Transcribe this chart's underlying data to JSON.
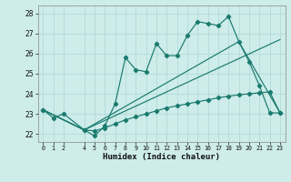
{
  "xlabel": "Humidex (Indice chaleur)",
  "bg_color": "#cdecea",
  "grid_color": "#aed8d4",
  "line_color": "#1a7a6e",
  "xlim": [
    -0.5,
    23.5
  ],
  "ylim": [
    21.6,
    28.4
  ],
  "xticks": [
    0,
    1,
    2,
    4,
    5,
    6,
    7,
    8,
    9,
    10,
    11,
    12,
    13,
    14,
    15,
    16,
    17,
    18,
    19,
    20,
    21,
    22,
    23
  ],
  "yticks": [
    22,
    23,
    24,
    25,
    26,
    27,
    28
  ],
  "series": {
    "line1_x": [
      0,
      1,
      2,
      4,
      5,
      6,
      7,
      8,
      9,
      10,
      11,
      12,
      13,
      14,
      15,
      16,
      17,
      18,
      19,
      20,
      21,
      22,
      23
    ],
    "line1_y": [
      23.2,
      22.8,
      23.0,
      22.2,
      21.9,
      22.4,
      23.5,
      25.8,
      25.2,
      25.1,
      26.5,
      25.9,
      25.9,
      26.9,
      27.6,
      27.5,
      27.4,
      27.85,
      26.6,
      25.6,
      24.4,
      23.05,
      23.05
    ],
    "line2_x": [
      0,
      4,
      19,
      23
    ],
    "line2_y": [
      23.2,
      22.2,
      26.6,
      23.05
    ],
    "line3_x": [
      0,
      4,
      23
    ],
    "line3_y": [
      23.2,
      22.2,
      26.7
    ],
    "line4_x": [
      0,
      4,
      5,
      6,
      7,
      8,
      9,
      10,
      11,
      12,
      13,
      14,
      15,
      16,
      17,
      18,
      19,
      20,
      21,
      22,
      23
    ],
    "line4_y": [
      23.2,
      22.2,
      22.15,
      22.3,
      22.5,
      22.7,
      22.85,
      23.0,
      23.15,
      23.3,
      23.4,
      23.5,
      23.6,
      23.7,
      23.8,
      23.88,
      23.95,
      24.0,
      24.05,
      24.1,
      23.05
    ]
  }
}
